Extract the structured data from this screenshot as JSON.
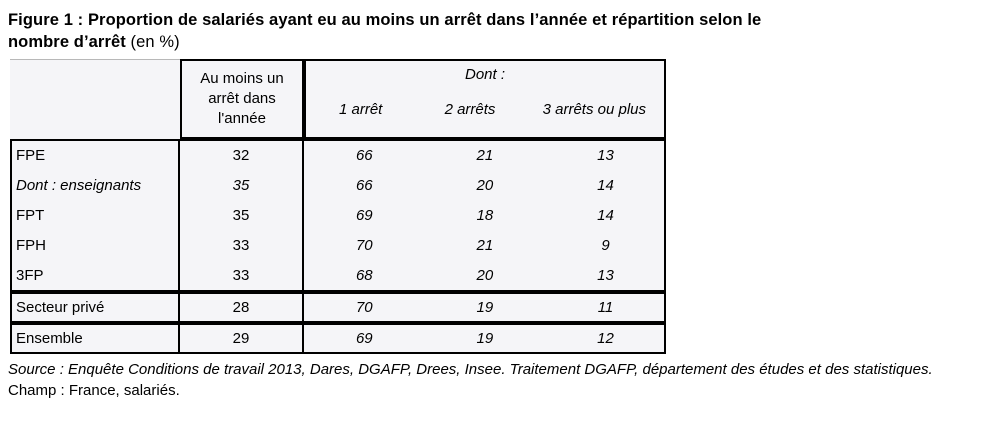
{
  "title": {
    "line1": "Figure 1 : Proportion de salariés ayant eu au moins un arrêt dans l’année et répartition selon le",
    "line2_bold": "nombre d’arrêt",
    "line2_normal": " (en %)"
  },
  "table": {
    "col2_header": "Au moins un arrêt dans l'année",
    "dont_header": "Dont :",
    "sub_headers": [
      "1 arrêt",
      "2 arrêts",
      "3 arrêts ou plus"
    ],
    "rows": [
      {
        "label": "FPE",
        "aumoins": "32",
        "dont": [
          "66",
          "21",
          "13"
        ]
      },
      {
        "label": "Dont : enseignants",
        "aumoins": "35",
        "dont": [
          "66",
          "20",
          "14"
        ]
      },
      {
        "label": "FPT",
        "aumoins": "35",
        "dont": [
          "69",
          "18",
          "14"
        ]
      },
      {
        "label": "FPH",
        "aumoins": "33",
        "dont": [
          "70",
          "21",
          "9"
        ]
      },
      {
        "label": "3FP",
        "aumoins": "33",
        "dont": [
          "68",
          "20",
          "13"
        ]
      }
    ],
    "secteur_prive": {
      "label": "Secteur privé",
      "aumoins": "28",
      "dont": [
        "70",
        "19",
        "11"
      ]
    },
    "ensemble": {
      "label": "Ensemble",
      "aumoins": "29",
      "dont": [
        "69",
        "19",
        "12"
      ]
    }
  },
  "footer": {
    "source": "Source : Enquête Conditions de travail 2013, Dares, DGAFP, Drees, Insee. Traitement DGAFP, département des études et des statistiques.",
    "champ": "Champ : France, salariés."
  },
  "colors": {
    "border": "#000000",
    "cell-bg": "#f5f5f8",
    "faint": "#b8b8b8"
  }
}
